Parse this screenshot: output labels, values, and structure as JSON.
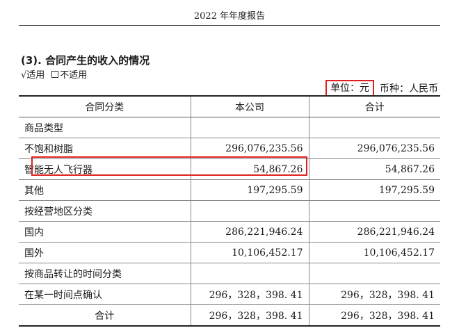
{
  "header": {
    "title": "2022 年年度报告"
  },
  "section": {
    "title": "(3). 合同产生的收入的情况",
    "applicable": "√适用",
    "not_applicable": "不适用"
  },
  "unit": {
    "unit_label": "单位：元",
    "currency_label": "币种：人民币"
  },
  "table": {
    "columns": [
      "合同分类",
      "本公司",
      "合计"
    ],
    "rows": [
      {
        "label": "商品类型",
        "company": "",
        "total": "",
        "type": "group"
      },
      {
        "label": "不饱和树脂",
        "company": "296,076,235.56",
        "total": "296,076,235.56",
        "type": "item"
      },
      {
        "label": "智能无人飞行器",
        "company": "54,867.26",
        "total": "54,867.26",
        "type": "item",
        "highlighted": true
      },
      {
        "label": "其他",
        "company": "197,295.59",
        "total": "197,295.59",
        "type": "item"
      },
      {
        "label": "按经营地区分类",
        "company": "",
        "total": "",
        "type": "group"
      },
      {
        "label": "国内",
        "company": "286,221,946.24",
        "total": "286,221,946.24",
        "type": "item"
      },
      {
        "label": "国外",
        "company": "10,106,452.17",
        "total": "10,106,452.17",
        "type": "item"
      },
      {
        "label": "按商品转让的时间分类",
        "company": "",
        "total": "",
        "type": "group"
      },
      {
        "label": "在某一时间点确认",
        "company": "296，328，398. 41",
        "total": "296，328，398. 41",
        "type": "item"
      },
      {
        "label": "合计",
        "company": "296，328，398. 41",
        "total": "296，328，398. 41",
        "type": "total"
      }
    ]
  },
  "colors": {
    "highlight_border": "#e02020"
  }
}
